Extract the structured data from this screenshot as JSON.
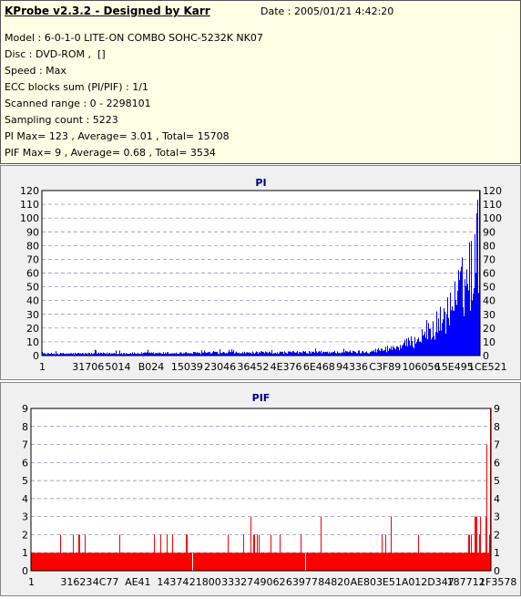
{
  "header": {
    "title": "KProbe v2.3.2 - Designed by Karr",
    "date": "Date : 2005/01/21 4:42:20",
    "model": "Model : 6-0-1-0 LITE-ON COMBO SOHC-5232K NK07",
    "disc": "Disc : DVD-ROM ,  []",
    "speed": "Speed : Max",
    "ecc": "ECC blocks sum (PI/PIF) : 1/1",
    "range": "Scanned range : 0 - 2298101",
    "sampling": "Sampling count : 5223",
    "pi_stats": "PI Max= 123 , Average= 3.01 , Total= 15708",
    "pif_stats": "PIF Max= 9 , Average= 0.68 , Total= 3534"
  },
  "chart_data": [
    {
      "type": "bar",
      "title": "PI",
      "color": "#0000ff",
      "ylim": [
        0,
        120
      ],
      "yticks": [
        0,
        10,
        20,
        30,
        40,
        50,
        60,
        70,
        80,
        90,
        100,
        110,
        120
      ],
      "xtick_labels": [
        "1",
        "31706",
        "5014",
        "B024",
        "15039",
        "23046",
        "36452",
        "4E376",
        "6E468",
        "94336",
        "C3F89",
        "106056",
        "15E495",
        "1CE521"
      ],
      "grid": true,
      "profile": {
        "x_range": [
          0,
          2298101
        ],
        "points": [
          [
            0,
            2
          ],
          [
            1100000,
            3
          ],
          [
            1700000,
            4
          ],
          [
            1850000,
            8
          ],
          [
            1950000,
            15
          ],
          [
            2050000,
            28
          ],
          [
            2130000,
            45
          ],
          [
            2190000,
            65
          ],
          [
            2250000,
            90
          ],
          [
            2298101,
            123
          ]
        ]
      }
    },
    {
      "type": "bar",
      "title": "PIF",
      "color": "#ff0000",
      "ylim": [
        0,
        9
      ],
      "yticks": [
        0,
        1,
        2,
        3,
        4,
        5,
        6,
        7,
        8,
        9
      ],
      "xtick_labels": [
        "1",
        "31623",
        "4C77",
        "AE41",
        "14374",
        "21800",
        "33327",
        "49062",
        "63977",
        "84820",
        "AE803",
        "E51A0",
        "12D347",
        "187712",
        "1F3578"
      ],
      "grid": true,
      "profile": {
        "x_range": [
          0,
          2298101
        ],
        "baseline": 1,
        "peaks": [
          [
            2298101,
            9
          ],
          [
            2280000,
            7
          ],
          [
            2250000,
            3
          ],
          [
            1800000,
            3
          ],
          [
            1450000,
            3
          ],
          [
            1100000,
            3
          ]
        ]
      }
    }
  ]
}
